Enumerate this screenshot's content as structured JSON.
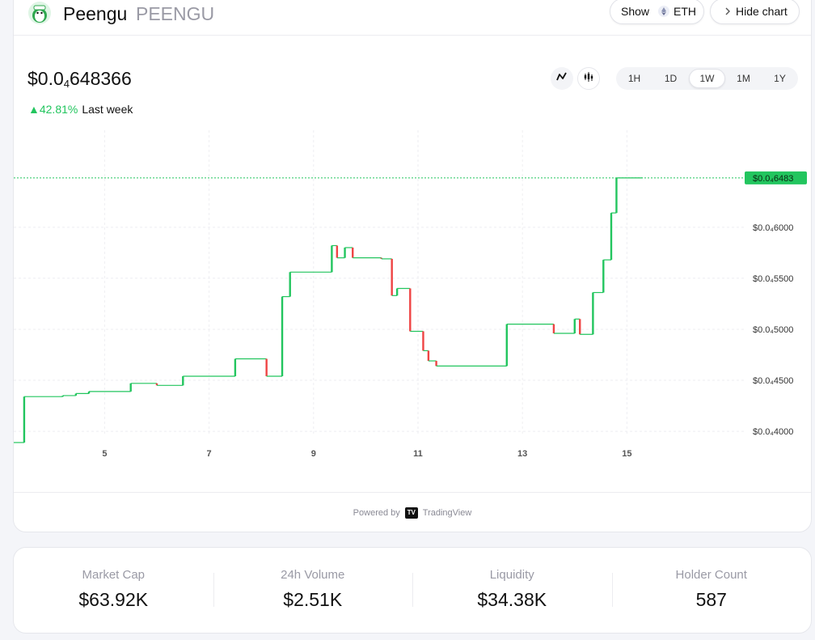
{
  "header": {
    "token_name": "Peengu",
    "token_symbol": "PEENGU",
    "show_label": "Show",
    "show_currency": "ETH",
    "hide_chart_label": "Hide chart"
  },
  "price": {
    "prefix": "$0.0",
    "zeros_sub": "4",
    "digits": "648366",
    "change_pct": "42.81%",
    "change_period": "Last week",
    "change_color": "#22c55e"
  },
  "chart_types": [
    "line-chart-icon",
    "candlestick-icon"
  ],
  "timeframes": [
    {
      "label": "1H",
      "active": false
    },
    {
      "label": "1D",
      "active": false
    },
    {
      "label": "1W",
      "active": true
    },
    {
      "label": "1M",
      "active": false
    },
    {
      "label": "1Y",
      "active": false
    }
  ],
  "chart_data": {
    "type": "candlestick",
    "up_color": "#22c55e",
    "down_color": "#ef4444",
    "current_price_label": "$0.0₄6483",
    "current_price": 6483,
    "y_ticks": [
      {
        "value": 6000,
        "label": "$0.0₄6000"
      },
      {
        "value": 5500,
        "label": "$0.0₄5500"
      },
      {
        "value": 5000,
        "label": "$0.0₄5000"
      },
      {
        "value": 4500,
        "label": "$0.0₄4500"
      },
      {
        "value": 4000,
        "label": "$0.0₄4000"
      }
    ],
    "x_ticks": [
      {
        "value": 5,
        "label": "5"
      },
      {
        "value": 7,
        "label": "7"
      },
      {
        "value": 9,
        "label": "9"
      },
      {
        "value": 11,
        "label": "11"
      },
      {
        "value": 13,
        "label": "13"
      },
      {
        "value": 15,
        "label": "15"
      }
    ],
    "x_range": [
      3.26,
      17.27
    ],
    "y_range": [
      3620,
      6950
    ],
    "grid": true,
    "step_path": [
      [
        3.26,
        3890
      ],
      [
        3.46,
        3890
      ],
      [
        3.46,
        4340
      ],
      [
        4.2,
        4340
      ],
      [
        4.2,
        4350
      ],
      [
        4.45,
        4350
      ],
      [
        4.45,
        4370
      ],
      [
        4.7,
        4370
      ],
      [
        4.7,
        4390
      ],
      [
        5.5,
        4390
      ],
      [
        5.5,
        4470
      ],
      [
        6.0,
        4470
      ],
      [
        6.0,
        4450
      ],
      [
        6.5,
        4450
      ],
      [
        6.5,
        4540
      ],
      [
        7.5,
        4540
      ],
      [
        7.5,
        4710
      ],
      [
        8.1,
        4710
      ],
      [
        8.1,
        4540
      ],
      [
        8.4,
        4540
      ],
      [
        8.4,
        5320
      ],
      [
        8.55,
        5320
      ],
      [
        8.55,
        5560
      ],
      [
        9.35,
        5560
      ],
      [
        9.35,
        5820
      ],
      [
        9.45,
        5820
      ],
      [
        9.45,
        5700
      ],
      [
        9.6,
        5700
      ],
      [
        9.6,
        5800
      ],
      [
        9.75,
        5800
      ],
      [
        9.75,
        5700
      ],
      [
        10.3,
        5700
      ],
      [
        10.3,
        5690
      ],
      [
        10.5,
        5690
      ],
      [
        10.5,
        5330
      ],
      [
        10.6,
        5330
      ],
      [
        10.6,
        5400
      ],
      [
        10.85,
        5400
      ],
      [
        10.85,
        4980
      ],
      [
        11.1,
        4980
      ],
      [
        11.1,
        4790
      ],
      [
        11.2,
        4790
      ],
      [
        11.2,
        4690
      ],
      [
        11.35,
        4690
      ],
      [
        11.35,
        4640
      ],
      [
        12.7,
        4640
      ],
      [
        12.7,
        5050
      ],
      [
        13.6,
        5050
      ],
      [
        13.6,
        4960
      ],
      [
        14.0,
        4960
      ],
      [
        14.0,
        5100
      ],
      [
        14.1,
        5100
      ],
      [
        14.1,
        4950
      ],
      [
        14.35,
        4950
      ],
      [
        14.35,
        5360
      ],
      [
        14.55,
        5360
      ],
      [
        14.55,
        5680
      ],
      [
        14.7,
        5680
      ],
      [
        14.7,
        6140
      ],
      [
        14.8,
        6140
      ],
      [
        14.8,
        6483
      ],
      [
        15.3,
        6483
      ]
    ]
  },
  "footer": {
    "powered_by": "Powered by",
    "tv_mark": "TV",
    "provider": "TradingView"
  },
  "stats": [
    {
      "label": "Market Cap",
      "value": "$63.92K"
    },
    {
      "label": "24h Volume",
      "value": "$2.51K"
    },
    {
      "label": "Liquidity",
      "value": "$34.38K"
    },
    {
      "label": "Holder Count",
      "value": "587"
    }
  ]
}
